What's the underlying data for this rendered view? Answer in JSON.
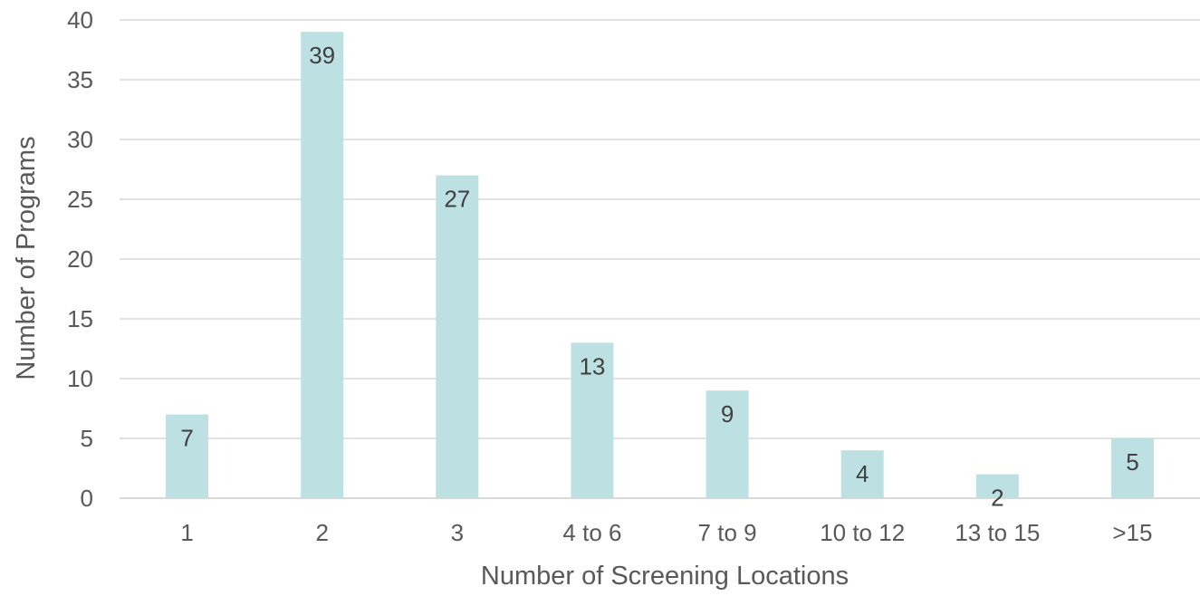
{
  "chart_data": {
    "type": "bar",
    "categories": [
      "1",
      "2",
      "3",
      "4 to 6",
      "7 to 9",
      "10 to 12",
      "13 to 15",
      ">15"
    ],
    "values": [
      7,
      39,
      27,
      13,
      9,
      4,
      2,
      5
    ],
    "data_labels": [
      "7",
      "39",
      "27",
      "13",
      "9",
      "4",
      "2",
      "5"
    ],
    "xlabel": "Number of Screening Locations",
    "ylabel": "Number of Programs",
    "ylim": [
      0,
      40
    ],
    "yticks": [
      0,
      5,
      10,
      15,
      20,
      25,
      30,
      35,
      40
    ],
    "grid": "horizontal",
    "bar_color": "#bde0e3",
    "label_color": "#404040",
    "axis_text_color": "#595959",
    "grid_color": "#d9d9d9"
  }
}
